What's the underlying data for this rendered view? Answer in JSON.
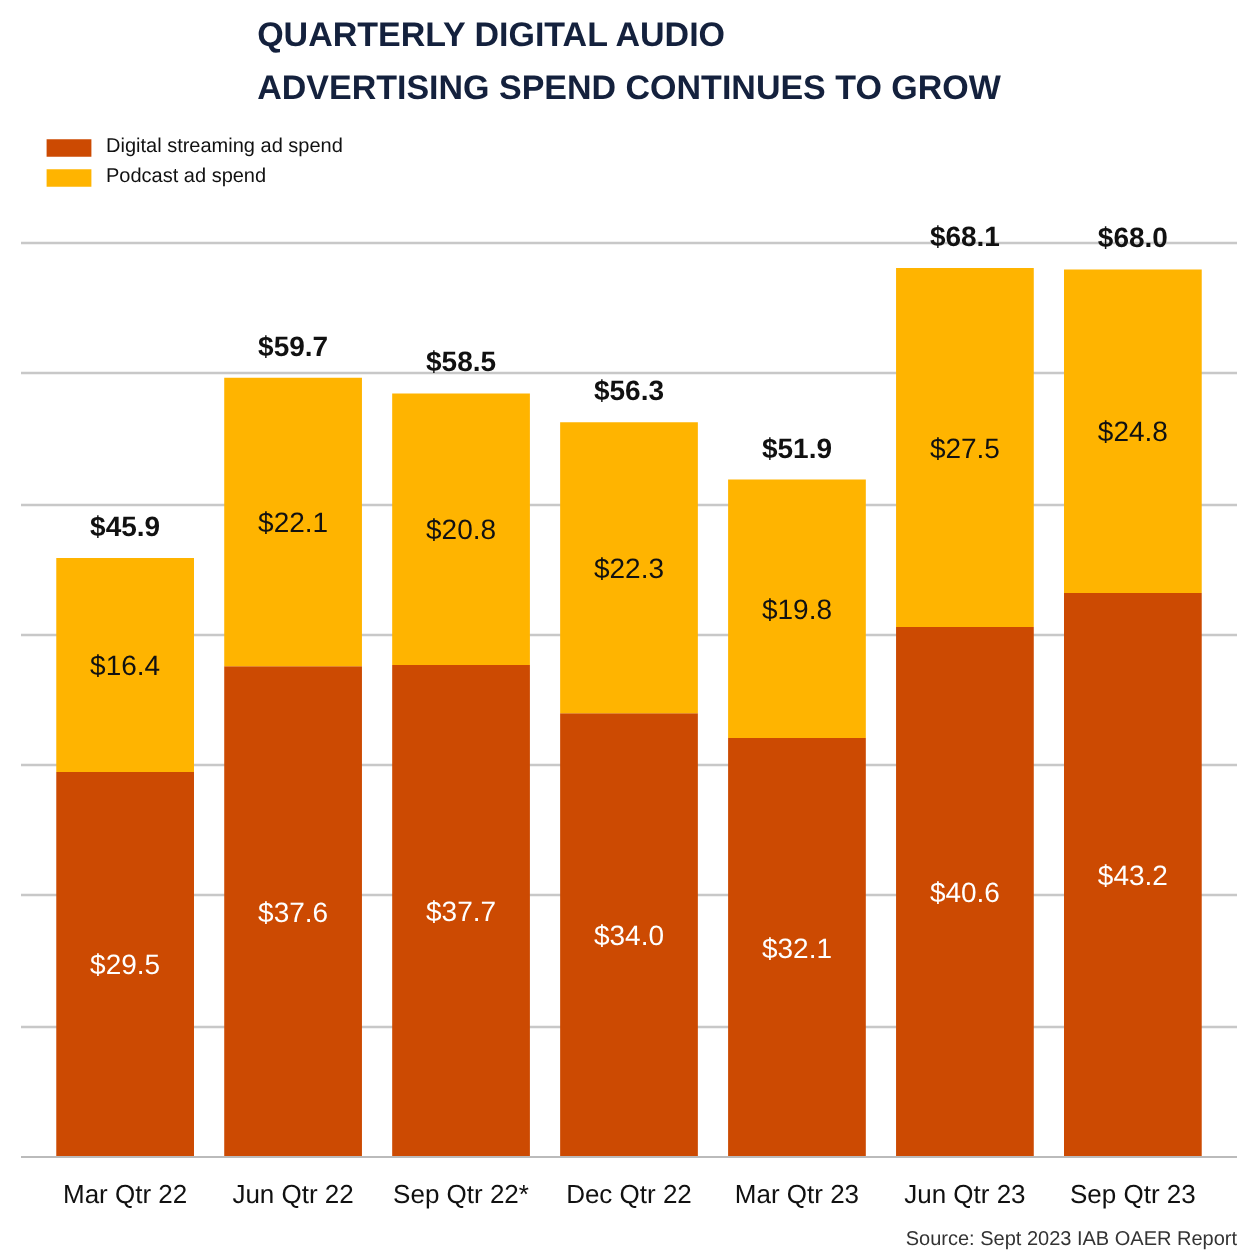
{
  "chart_data": {
    "type": "bar",
    "stacked": true,
    "title": "QUARTERLY DIGITAL AUDIO\nADVERTISING SPEND CONTINUES TO GROW",
    "categories": [
      "Mar Qtr 22",
      "Jun Qtr 22",
      "Sep Qtr 22*",
      "Dec Qtr 22",
      "Mar Qtr 23",
      "Jun Qtr 23",
      "Sep Qtr 23"
    ],
    "series": [
      {
        "name": "Digital streaming ad spend",
        "color": "#cc4a02",
        "values": [
          29.5,
          37.6,
          37.7,
          34.0,
          32.1,
          40.6,
          43.2
        ],
        "value_labels": [
          "$29.5",
          "$37.6",
          "$37.7",
          "$34.0",
          "$32.1",
          "$40.6",
          "$43.2"
        ]
      },
      {
        "name": "Podcast ad spend",
        "color": "#ffb400",
        "values": [
          16.4,
          22.1,
          20.8,
          22.3,
          19.8,
          27.5,
          24.8
        ],
        "value_labels": [
          "$16.4",
          "$22.1",
          "$20.8",
          "$22.3",
          "$19.8",
          "$27.5",
          "$24.8"
        ]
      }
    ],
    "totals": [
      "$45.9",
      "$59.7",
      "$58.5",
      "$56.3",
      "$51.9",
      "$68.1",
      "$68.0"
    ],
    "grid": "y",
    "tick_labels": "x",
    "legend": "top left",
    "annotations": [
      "Source: Sept 2023 IAB OAER Report"
    ]
  }
}
